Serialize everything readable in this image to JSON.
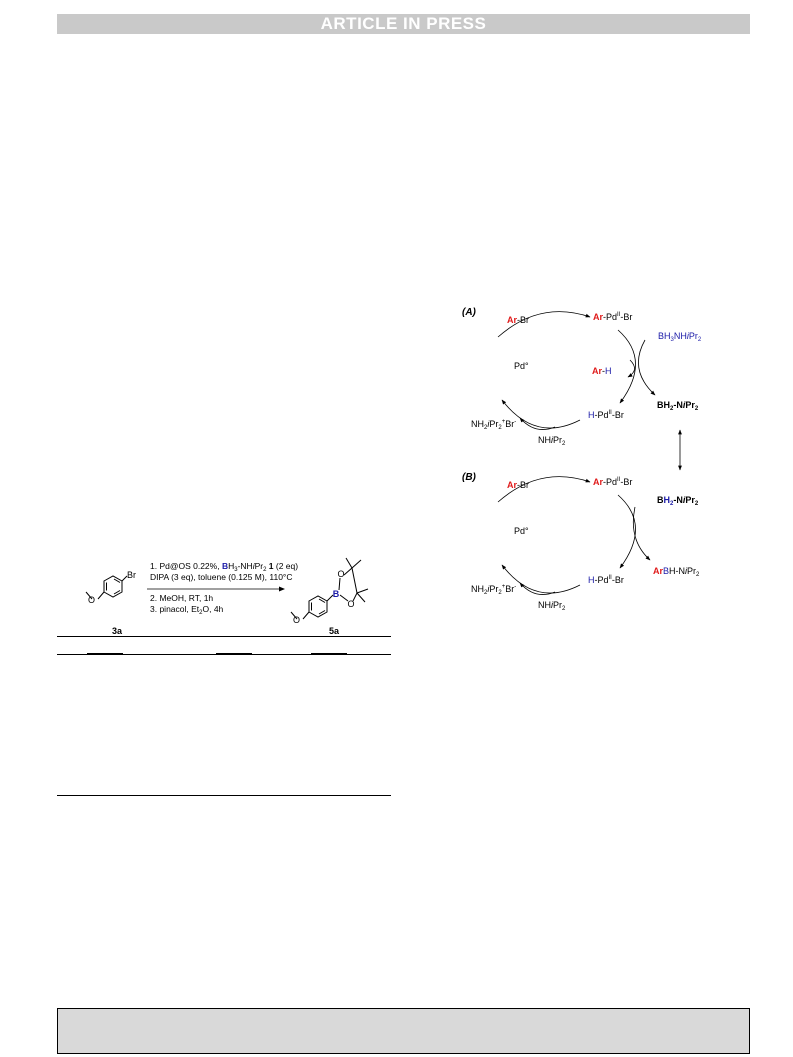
{
  "header": {
    "banner": "ARTICLE IN PRESS"
  },
  "scheme": {
    "substrate": {
      "label": "3a",
      "substituent": "Br"
    },
    "product": {
      "label": "5a",
      "boron": "B",
      "oxygen": "O"
    },
    "conditions": {
      "step1_prefix": "1. Pd@OS 0.22%, ",
      "step1_B": "B",
      "step1_mid": "H",
      "step1_sub3": "3",
      "step1_amine": "-NH",
      "step1_iPr": "i",
      "step1_Pr": "Pr",
      "step1_sub2": "2",
      "step1_num": " 1",
      "step1_suffix": " (2 eq)",
      "step1_line2": "DIPA (3 eq), toluene (0.125 M), 110°C",
      "step2": "2. MeOH, RT, 1h",
      "step3_a": "3. pinacol, Et",
      "step3_sub": "2",
      "step3_b": "O, 4h"
    }
  },
  "mechanism": {
    "panelA": {
      "label": "(A)",
      "ArBr_Ar": "Ar",
      "ArBr_rest": "-Br",
      "ArPd_Ar": "Ar",
      "ArPd_Pd": "-Pd",
      "ArPd_ox": "II",
      "ArPd_Br": "-Br",
      "reagent_B": "B",
      "reagent_H": "H",
      "reagent_sub3": "3",
      "reagent_NH": "NH",
      "reagent_i": "i",
      "reagent_Pr": "Pr",
      "reagent_sub2": "2",
      "ArH_Ar": "Ar",
      "ArH_dash": "-",
      "ArH_H": "H",
      "pd0": "Pd°",
      "BH2_B": "BH",
      "BH2_sub2": "2",
      "BH2_N": "-N",
      "BH2_i": "i",
      "BH2_Pr": "Pr",
      "BH2_sub2b": "2",
      "HPd_H": "H",
      "HPd_Pd": "-Pd",
      "HPd_ox": "II",
      "HPd_Br": "-Br",
      "salt_a": "NH",
      "salt_sub2": "2",
      "salt_i": "i",
      "salt_Pr": "Pr",
      "salt_sub2b": "2",
      "salt_plus": "+",
      "salt_Br": "Br",
      "salt_minus": "-",
      "base_NH": "NH",
      "base_i": "i",
      "base_Pr": "Pr",
      "base_sub2": "2"
    },
    "panelB": {
      "label": "(B)",
      "ArBr_Ar": "Ar",
      "ArBr_rest": "-Br",
      "ArPd_Ar": "Ar",
      "ArPd_Pd": "-Pd",
      "ArPd_ox": "II",
      "ArPd_Br": "-Br",
      "reagent_B": "B",
      "reagent_H": "H",
      "reagent_sub2": "2",
      "reagent_N": "-N",
      "reagent_i": "i",
      "reagent_Pr": "Pr",
      "reagent_sub2b": "2",
      "pd0": "Pd°",
      "prod_Ar": "Ar",
      "prod_B": "B",
      "prod_rest": "H-N",
      "prod_i": "i",
      "prod_Pr": "Pr",
      "prod_sub2": "2",
      "HPd_H": "H",
      "HPd_Pd": "-Pd",
      "HPd_ox": "II",
      "HPd_Br": "-Br",
      "salt_a": "NH",
      "salt_sub2": "2",
      "salt_i": "i",
      "salt_Pr": "Pr",
      "salt_sub2b": "2",
      "salt_plus": "+",
      "salt_Br": "Br",
      "salt_minus": "-",
      "base_NH": "NH",
      "base_i": "i",
      "base_Pr": "Pr",
      "base_sub2": "2"
    }
  },
  "colors": {
    "ar_red": "#e01b1b",
    "boron_blue": "#1a1aa8",
    "hydride_blue": "#1a1aa8"
  }
}
